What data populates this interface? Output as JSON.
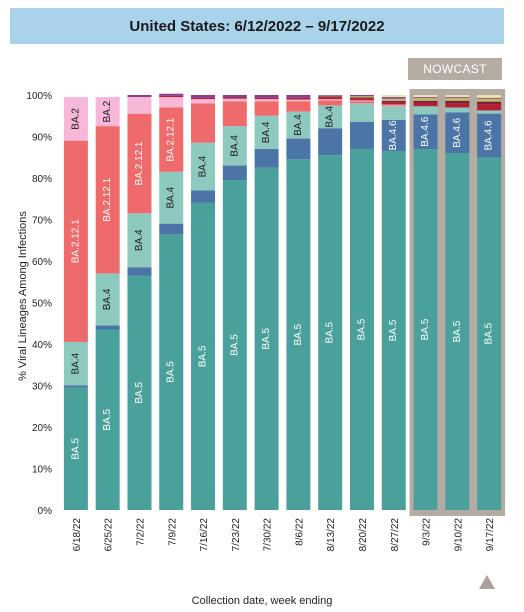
{
  "header": {
    "title": "United States: 6/12/2022 – 9/17/2022"
  },
  "nowcast_label": "NOWCAST",
  "scroll_up_icon": "triangle-up-icon",
  "colors": {
    "BA.5": "#4aa19b",
    "BA.4.6": "#4a75a6",
    "BA.2.75": "#3d6597",
    "BA.4": "#8ec9c0",
    "BA.2.12.1": "#ef6a6a",
    "BA.2": "#f6b7d8",
    "other_red": "#b51f35",
    "other_maroon": "#7a1e3a",
    "other_olive": "#b9b96a",
    "other_pale": "#e9e2b0",
    "other_purple": "#8a3f8a",
    "nowcast": "#b4aba3"
  },
  "chart_data": {
    "type": "bar",
    "stacked": true,
    "title": "United States: 6/12/2022 – 9/17/2022",
    "xlabel": "Collection date, week ending",
    "ylabel": "% Viral Lineages Among Infections",
    "ylim": [
      0,
      100
    ],
    "yticks": [
      "0%",
      "10%",
      "20%",
      "30%",
      "40%",
      "50%",
      "60%",
      "70%",
      "80%",
      "90%",
      "100%"
    ],
    "categories": [
      "6/18/22",
      "6/25/22",
      "7/2/22",
      "7/9/22",
      "7/16/22",
      "7/23/22",
      "7/30/22",
      "8/6/22",
      "8/13/22",
      "8/20/22",
      "8/27/22",
      "9/3/22",
      "9/10/22",
      "9/17/22"
    ],
    "nowcast_categories": [
      "9/3/22",
      "9/10/22",
      "9/17/22"
    ],
    "series": [
      {
        "name": "BA.5",
        "color_key": "BA.5",
        "values": [
          29.5,
          43.5,
          56.5,
          66.5,
          74.0,
          79.5,
          82.5,
          84.5,
          85.5,
          87.0,
          86.5,
          87.0,
          86.0,
          85.0
        ],
        "labels": [
          "BA.5",
          "BA.5",
          "BA.5",
          "BA.5",
          "BA.5",
          "BA.5",
          "BA.5",
          "BA.5",
          "BA.5",
          "BA.5",
          "BA.5",
          "BA.5",
          "BA.5",
          "BA.5"
        ]
      },
      {
        "name": "BA.4.6",
        "color_key": "BA.4.6",
        "values": [
          0.5,
          1.0,
          2.0,
          2.5,
          3.0,
          3.5,
          4.5,
          5.0,
          6.5,
          6.5,
          7.5,
          8.3,
          9.8,
          10.5
        ],
        "labels": [
          "",
          "",
          "",
          "",
          "",
          "",
          "",
          "",
          "",
          "",
          "BA.4.6",
          "BA.4.6",
          "BA.4.6",
          "BA.4.6"
        ]
      },
      {
        "name": "BA.4",
        "color_key": "BA.4",
        "values": [
          10.5,
          12.5,
          13.0,
          12.5,
          11.5,
          9.5,
          8.0,
          6.5,
          5.5,
          4.5,
          3.3,
          2.0,
          1.2,
          0.8
        ],
        "labels": [
          "BA.4",
          "BA.4",
          "BA.4",
          "BA.4",
          "BA.4",
          "BA.4",
          "BA.4",
          "BA.4",
          "BA.4",
          "",
          "",
          "",
          "",
          ""
        ]
      },
      {
        "name": "BA.2.12.1",
        "color_key": "BA.2.12.1",
        "values": [
          48.5,
          35.5,
          24.0,
          15.5,
          9.5,
          6.0,
          3.5,
          2.5,
          1.2,
          0.5,
          0.2,
          0,
          0,
          0
        ],
        "labels": [
          "BA.2.12.1",
          "BA.2.12.1",
          "BA.2.12.1",
          "BA.2.12.1",
          "",
          "",
          "",
          "",
          "",
          "",
          "",
          "",
          "",
          ""
        ]
      },
      {
        "name": "BA.2",
        "color_key": "BA.2",
        "values": [
          10.5,
          7.0,
          4.0,
          2.5,
          1.0,
          0.6,
          0.5,
          0.4,
          0.3,
          0.2,
          0.2,
          0,
          0,
          0
        ],
        "labels": [
          "BA.2",
          "BA.2",
          "",
          "",
          "",
          "",
          "",
          "",
          "",
          "",
          "",
          "",
          "",
          ""
        ]
      },
      {
        "name": "",
        "color_key": "other_red",
        "values": [
          0,
          0,
          0,
          0.3,
          0.3,
          0.3,
          0.3,
          0.4,
          0.5,
          0.5,
          0.6,
          0.8,
          1.0,
          1.5
        ],
        "labels": [
          "",
          "",
          "",
          "",
          "",
          "",
          "",
          "",
          "",
          "",
          "",
          "",
          "",
          ""
        ]
      },
      {
        "name": "",
        "color_key": "other_maroon",
        "values": [
          0,
          0,
          0,
          0,
          0,
          0,
          0,
          0,
          0.2,
          0.2,
          0.3,
          0.5,
          0.6,
          0.6
        ],
        "labels": [
          "",
          "",
          "",
          "",
          "",
          "",
          "",
          "",
          "",
          "",
          "",
          "",
          "",
          ""
        ]
      },
      {
        "name": "",
        "color_key": "other_olive",
        "values": [
          0,
          0,
          0,
          0,
          0,
          0,
          0,
          0,
          0.2,
          0.3,
          0.5,
          0.7,
          0.7,
          0.7
        ],
        "labels": [
          "",
          "",
          "",
          "",
          "",
          "",
          "",
          "",
          "",
          "",
          "",
          "",
          "",
          ""
        ]
      },
      {
        "name": "",
        "color_key": "other_purple",
        "values": [
          0,
          0,
          0.5,
          0.5,
          0.7,
          0.6,
          0.7,
          0.7,
          0.1,
          0.3,
          0.4,
          0.2,
          0.2,
          0.2
        ],
        "labels": [
          "",
          "",
          "",
          "",
          "",
          "",
          "",
          "",
          "",
          "",
          "",
          "",
          "",
          ""
        ]
      },
      {
        "name": "",
        "color_key": "other_pale",
        "values": [
          0,
          0,
          0,
          0,
          0,
          0,
          0,
          0,
          0,
          0,
          0.5,
          0.5,
          0.5,
          0.7
        ],
        "labels": [
          "",
          "",
          "",
          "",
          "",
          "",
          "",
          "",
          "",
          "",
          "",
          "",
          "",
          ""
        ]
      }
    ]
  }
}
